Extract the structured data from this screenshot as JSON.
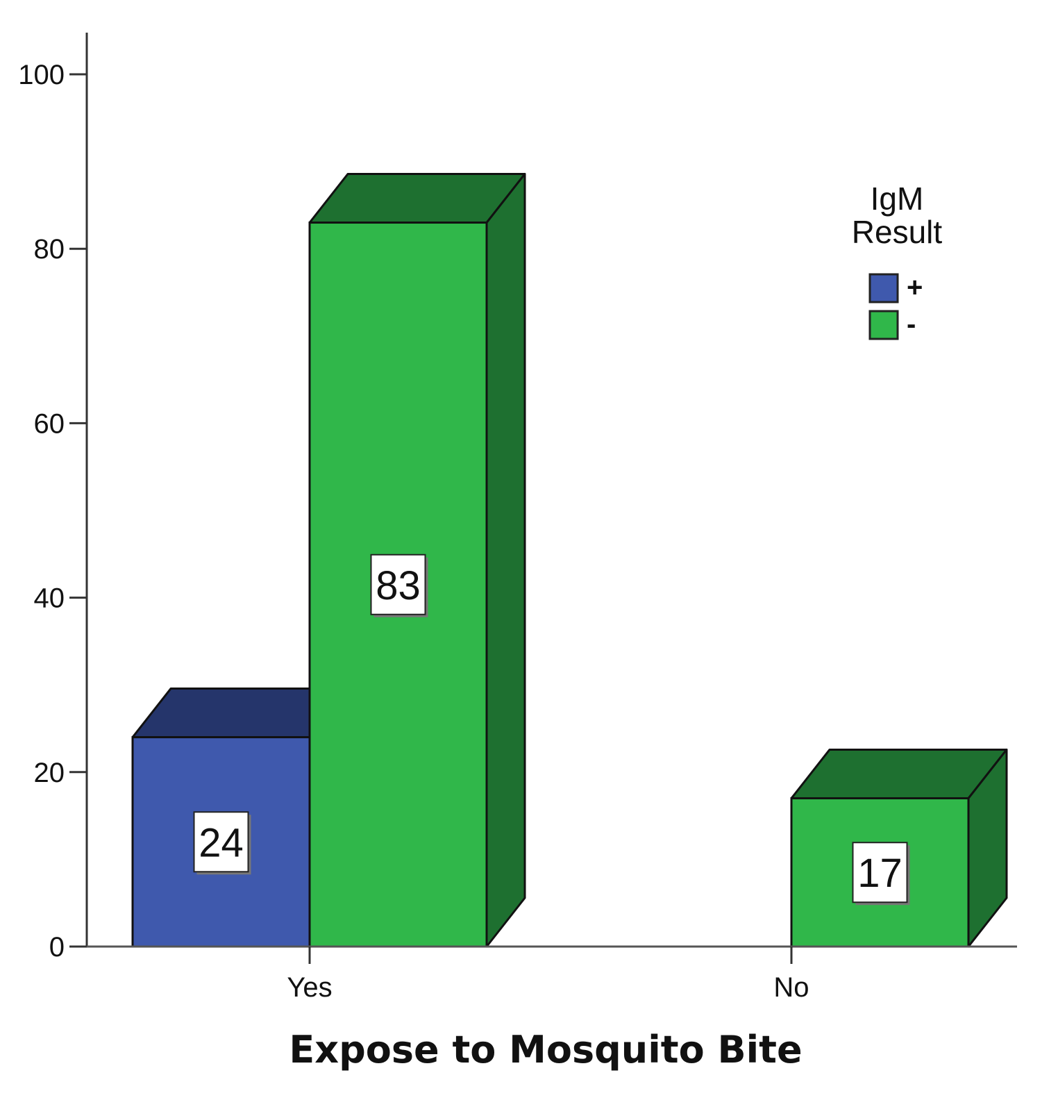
{
  "chart_data": {
    "type": "bar",
    "style": "3d-clustered",
    "categories": [
      "Yes",
      "No"
    ],
    "series": [
      {
        "name": "+",
        "values": [
          24,
          0
        ],
        "color": "#3f59ad",
        "dark": "#25356b"
      },
      {
        "name": "-",
        "values": [
          83,
          17
        ],
        "color": "#30b74a",
        "dark": "#1e7030"
      }
    ],
    "data_labels": [
      [
        "24",
        ""
      ],
      [
        "83",
        "17"
      ]
    ],
    "xlabel": "Expose to Mosquito Bite",
    "ylabel": "",
    "ylim": [
      0,
      100
    ],
    "yticks": [
      0,
      20,
      40,
      60,
      80,
      100
    ],
    "grid": false,
    "legend": {
      "title": "IgM Result",
      "title_lines": [
        "IgM",
        "Result"
      ],
      "placement": "top-right"
    }
  }
}
